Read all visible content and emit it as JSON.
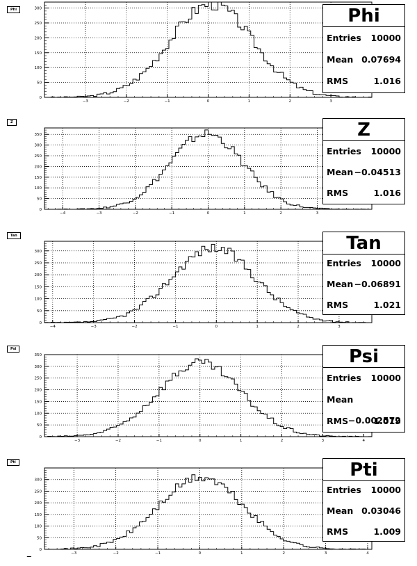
{
  "chart_data": [
    {
      "type": "bar",
      "title": "Phi",
      "tag": "Phi",
      "xlim": [
        -4.0,
        4.0
      ],
      "ylim": [
        0,
        320
      ],
      "x_ticks": [
        -3,
        -2,
        -1,
        0,
        1,
        2,
        3
      ],
      "y_ticks": [
        0,
        50,
        100,
        150,
        200,
        250,
        300
      ],
      "grid": true,
      "stats": {
        "entries": "10000",
        "mean": "0.07694",
        "rms": "1.016"
      }
    },
    {
      "type": "bar",
      "title": "Z",
      "tag": "Z",
      "xlim": [
        -4.5,
        4.5
      ],
      "ylim": [
        0,
        380
      ],
      "x_ticks": [
        -4,
        -3,
        -2,
        -1,
        0,
        1,
        2,
        3
      ],
      "y_ticks": [
        0,
        50,
        100,
        150,
        200,
        250,
        300,
        350
      ],
      "grid": true,
      "stats": {
        "entries": "10000",
        "mean": "−0.04513",
        "rms": "1.016"
      }
    },
    {
      "type": "bar",
      "title": "Tan",
      "tag": "Tan",
      "xlim": [
        -4.2,
        3.8
      ],
      "ylim": [
        0,
        340
      ],
      "x_ticks": [
        -4,
        -3,
        -2,
        -1,
        0,
        1,
        2,
        3
      ],
      "y_ticks": [
        0,
        50,
        100,
        150,
        200,
        250,
        300
      ],
      "grid": true,
      "stats": {
        "entries": "10000",
        "mean": "−0.06891",
        "rms": "1.021"
      }
    },
    {
      "type": "bar",
      "title": "Psi",
      "tag": "Psi",
      "xlim": [
        -3.8,
        4.2
      ],
      "ylim": [
        0,
        350
      ],
      "x_ticks": [
        -3,
        -2,
        -1,
        0,
        1,
        2,
        3,
        4
      ],
      "y_ticks": [
        0,
        50,
        100,
        150,
        200,
        250,
        300,
        350
      ],
      "grid": true,
      "stats": {
        "entries": "10000",
        "mean": "−0.002572",
        "rms": "1.019"
      }
    },
    {
      "type": "bar",
      "title": "Pti",
      "tag": "Pti",
      "xlim": [
        -3.7,
        4.1
      ],
      "ylim": [
        0,
        350
      ],
      "x_ticks": [
        -3,
        -2,
        -1,
        0,
        1,
        2,
        3,
        4
      ],
      "y_ticks": [
        0,
        50,
        100,
        150,
        200,
        250,
        300
      ],
      "grid": true,
      "stats": {
        "entries": "10000",
        "mean": "0.03046",
        "rms": "1.009"
      }
    }
  ],
  "stat_labels": {
    "entries": "Entries",
    "mean": "Mean",
    "rms": "RMS"
  }
}
